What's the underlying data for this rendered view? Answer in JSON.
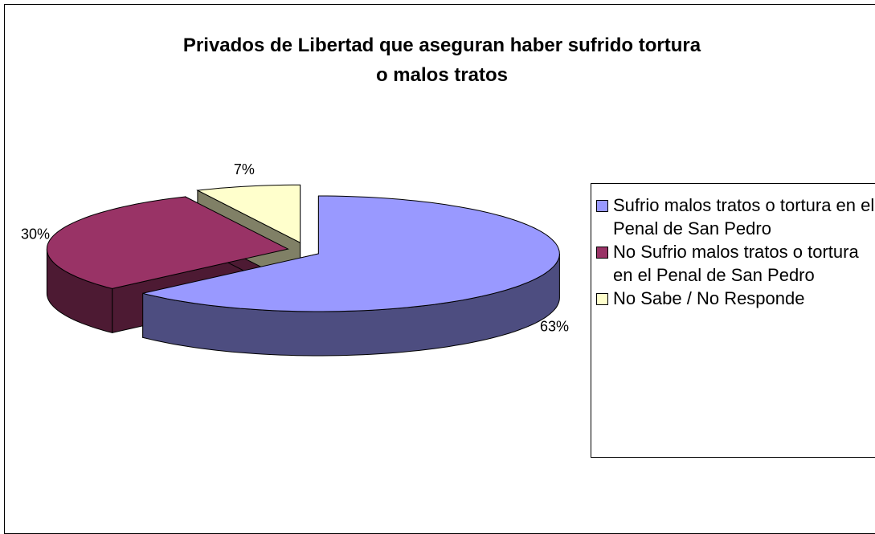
{
  "chart_data": {
    "type": "pie",
    "title": "Privados de Libertad que aseguran haber sufrido tortura\no malos tratos",
    "categories": [
      "Sufrio malos tratos o tortura en el Penal de San Pedro",
      "No Sufrio malos tratos o tortura en el Penal de San Pedro",
      "No Sabe / No Responde"
    ],
    "values": [
      63,
      30,
      7
    ],
    "value_labels": [
      "63%",
      "30%",
      "7%"
    ],
    "colors": [
      "#9999ff",
      "#993366",
      "#ffffcc"
    ],
    "legend": "right"
  }
}
